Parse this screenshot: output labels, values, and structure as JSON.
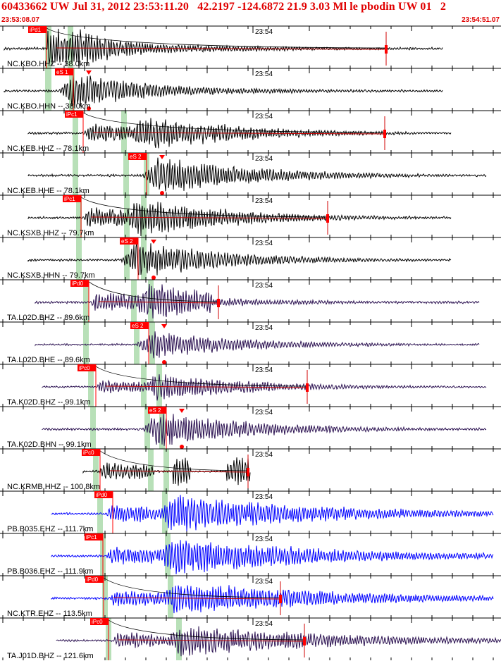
{
  "header": {
    "title": "60433662 UW Jul 31, 2012 23:53:11.20   42.2197 -124.6872 21.9 3.03 Ml le pbodin UW 01   2",
    "start_time": "23:53:08.07",
    "end_time": "23:54:51.07"
  },
  "minute_label": "23:54",
  "colors": {
    "header_text": "#e00000",
    "pick_flag": "#ff0000",
    "trace_nc": "#000000",
    "trace_ta": "#2a1050",
    "trace_pb": "#0000ff",
    "phase_band": "#b8e0b8",
    "coda_curve": "#000000"
  },
  "channels": [
    {
      "label": "NC.KBO.HHZ -- 38.0km",
      "color": "#000000",
      "pick": "iPd1"
    },
    {
      "label": "NC.KBO.HHN -- 38.0km",
      "color": "#000000",
      "pick": "eS 1"
    },
    {
      "label": "NC.KEB.HHZ -- 78.1km",
      "color": "#000000",
      "pick": "iPc1"
    },
    {
      "label": "NC.KEB.HHE -- 78.1km",
      "color": "#000000",
      "pick": "eS 2"
    },
    {
      "label": "NC.KSXB.HHZ -- 79.7km",
      "color": "#000000",
      "pick": "iPc1"
    },
    {
      "label": "NC.KSXB.HHN -- 79.7km",
      "color": "#000000",
      "pick": "eS 2"
    },
    {
      "label": "TA.L02D.BHZ -- 89.6km",
      "color": "#2a1050",
      "pick": "iPd0"
    },
    {
      "label": "TA.L02D.BHE -- 89.6km",
      "color": "#2a1050",
      "pick": "eS 2"
    },
    {
      "label": "TA.K02D.BHZ -- 99.1km",
      "color": "#2a1050",
      "pick": "iPc0"
    },
    {
      "label": "TA.K02D.BHN -- 99.1km",
      "color": "#2a1050",
      "pick": "eS 2"
    },
    {
      "label": "NC.KRMB.HHZ -- 100.8km",
      "color": "#000000",
      "pick": "iPc0"
    },
    {
      "label": "PB.B035.EHZ -- 111.7km",
      "color": "#0000ff",
      "pick": "iPd0"
    },
    {
      "label": "PB.B036.EHZ -- 111.9km",
      "color": "#0000ff",
      "pick": "iPc1"
    },
    {
      "label": "NC.KTR.EHZ -- 113.5km",
      "color": "#0000ff",
      "pick": "iPd0"
    },
    {
      "label": "TA.J01D.BHZ -- 121.6km",
      "color": "#2a1050",
      "pick": "iPc0"
    }
  ]
}
